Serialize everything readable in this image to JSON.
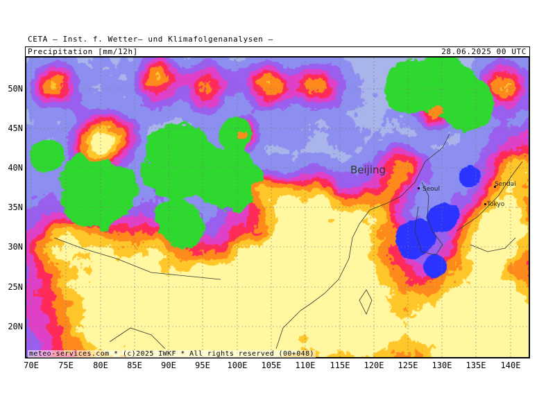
{
  "header": {
    "title": "CETA – Inst. f. Wetter– und Klimafolgenanalysen –",
    "parameter": "Precipitation [mm/12h]",
    "valid_time": "28.06.2025 00 UTC"
  },
  "footer": {
    "credit": "meteo-services.com * (c)2025 IWKF * All rights reserved (00+048)"
  },
  "axes": {
    "lon_labels": [
      "70E",
      "75E",
      "80E",
      "85E",
      "90E",
      "95E",
      "100E",
      "105E",
      "110E",
      "115E",
      "120E",
      "125E",
      "130E",
      "135E",
      "140E"
    ],
    "lat_labels": [
      "50N",
      "45N",
      "40N",
      "35N",
      "30N",
      "25N",
      "20N"
    ]
  },
  "cities": [
    {
      "name": "Beijing",
      "style": "big"
    },
    {
      "name": "Seoul",
      "style": "small"
    },
    {
      "name": "Sendai",
      "style": "small"
    },
    {
      "name": "Tokyo",
      "style": "small"
    }
  ],
  "color_scale": [
    "#ffffff",
    "#d6e2f7",
    "#a9b4ea",
    "#8c8ff0",
    "#9a5fee",
    "#e040c8",
    "#ff2a58",
    "#ff8a1c",
    "#ffc629",
    "#fff8a0",
    "#2ed82e",
    "#2a33ff"
  ]
}
